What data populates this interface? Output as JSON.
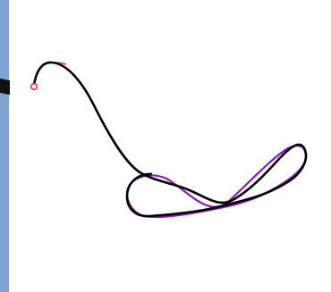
{
  "colors": {
    "background": "#ffffff",
    "side_panel": "#7fa3d1",
    "side_panel_handle": "#111111",
    "grid_top": "#b7d98a",
    "grid_mid": "#5fd3c8",
    "grid_bottom": "#6f6fd6",
    "trajectory_main": "#000000",
    "trajectory_reference": "#ff2a2a",
    "trajectory_alt": "#8a19b8",
    "start_marker": "#ff2a2a"
  },
  "icons": {
    "start_marker": "start-point-circle-icon"
  }
}
